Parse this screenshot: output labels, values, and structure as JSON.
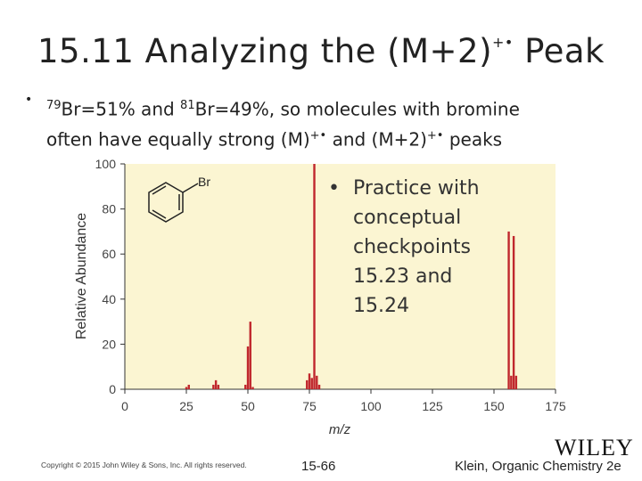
{
  "slide": {
    "title_main": "15.11 Analyzing the (M+2)",
    "title_sup": "+•",
    "title_end": " Peak",
    "line1_iso1": "79",
    "line1_a": "Br=51% and ",
    "line1_iso2": "81",
    "line1_b": "Br=49%, so molecules with bromine",
    "line2_a": "often have equally strong (M)",
    "line2_sup1": "+•",
    "line2_b": " and (M+2)",
    "line2_sup2": "+•",
    "line2_c": " peaks",
    "bullet": "•",
    "practice_text": "Practice with conceptual checkpoints 15.23 and 15.24",
    "copyright": "Copyright © 2015 John Wiley & Sons, Inc. All rights reserved.",
    "page_number": "15-66",
    "footer_right": "Klein, Organic Chemistry 2e",
    "publisher_logo": "WILEY"
  },
  "chart_data": {
    "type": "bar",
    "xlabel": "m/z",
    "ylabel": "Relative Abundance",
    "xlim": [
      0,
      175
    ],
    "ylim": [
      0,
      100
    ],
    "xticks": [
      0,
      25,
      50,
      75,
      100,
      125,
      150,
      175
    ],
    "yticks": [
      0,
      20,
      40,
      60,
      80,
      100
    ],
    "structure_label": "Br",
    "bar_color": "#c0272d",
    "background_color": "#fbf5d2",
    "peaks": [
      {
        "x": 25,
        "y": 1
      },
      {
        "x": 26,
        "y": 2
      },
      {
        "x": 36,
        "y": 2
      },
      {
        "x": 37,
        "y": 4
      },
      {
        "x": 38,
        "y": 2
      },
      {
        "x": 49,
        "y": 2
      },
      {
        "x": 50,
        "y": 19
      },
      {
        "x": 51,
        "y": 30
      },
      {
        "x": 52,
        "y": 1
      },
      {
        "x": 74,
        "y": 4
      },
      {
        "x": 75,
        "y": 7
      },
      {
        "x": 76,
        "y": 5
      },
      {
        "x": 77,
        "y": 100
      },
      {
        "x": 78,
        "y": 6
      },
      {
        "x": 79,
        "y": 2
      },
      {
        "x": 156,
        "y": 70
      },
      {
        "x": 157,
        "y": 6
      },
      {
        "x": 158,
        "y": 68
      },
      {
        "x": 159,
        "y": 6
      }
    ]
  }
}
